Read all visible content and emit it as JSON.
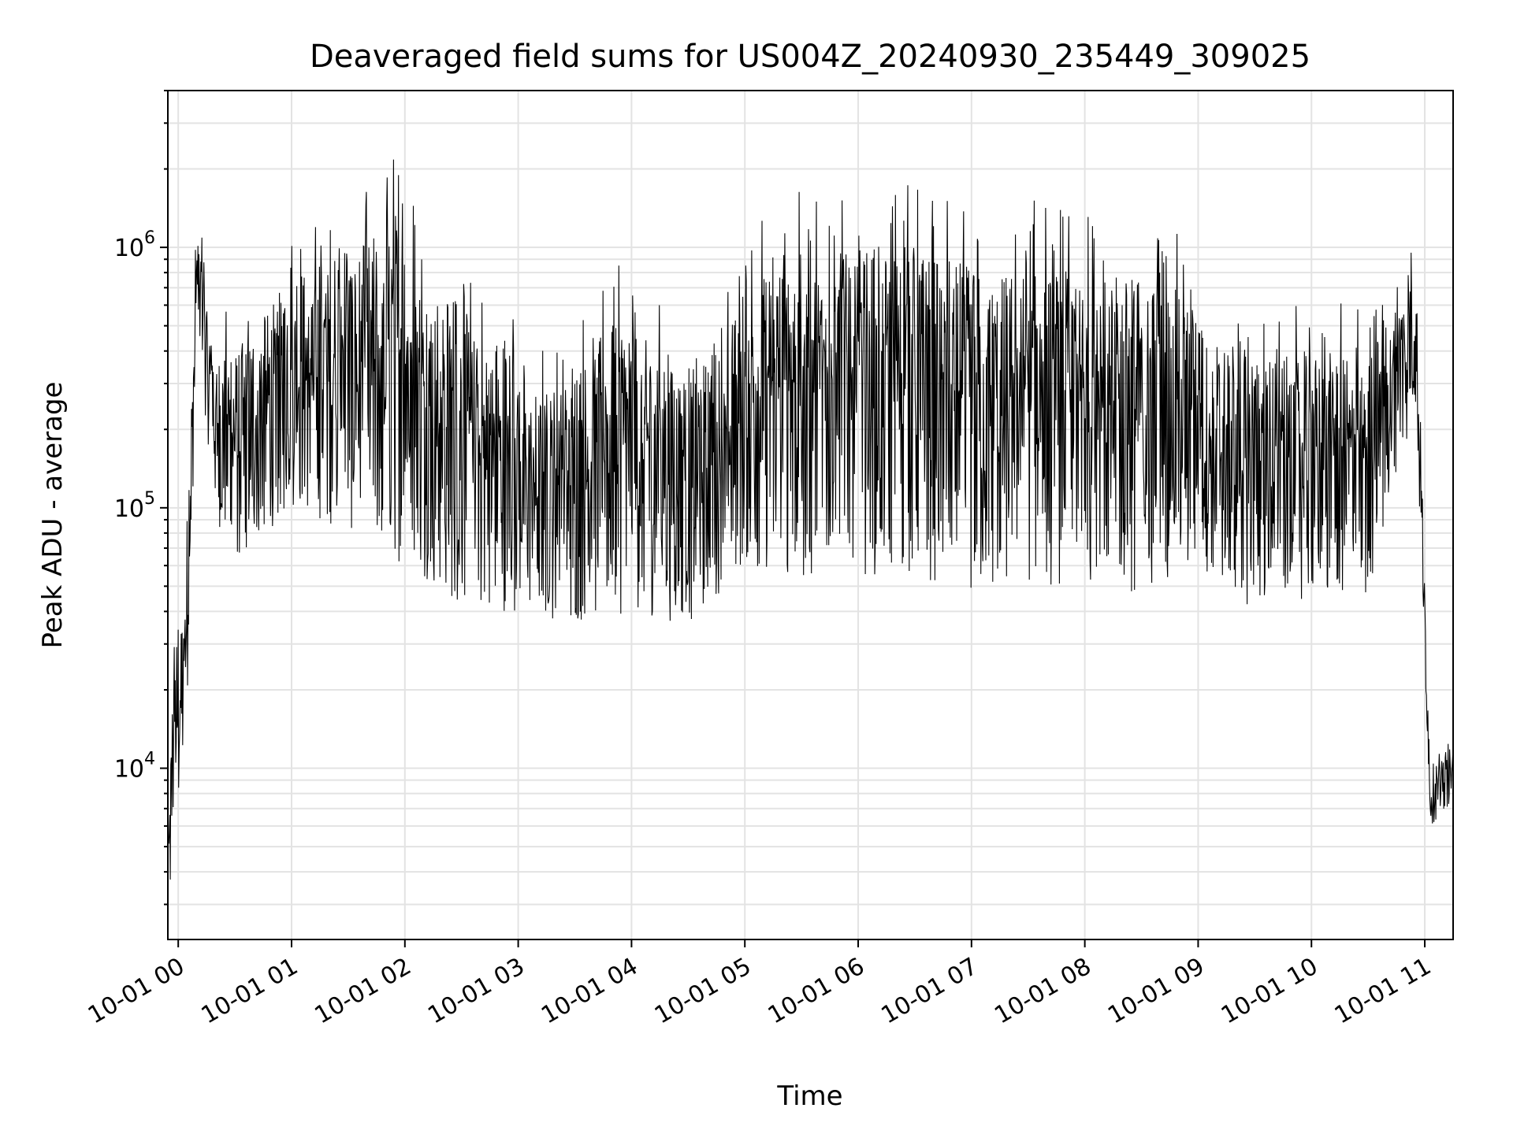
{
  "chart_data": {
    "type": "line",
    "title": "Deaveraged field sums for US004Z_20240930_235449_309025",
    "xlabel": "Time",
    "ylabel": "Peak ADU - average",
    "y_scale": "log",
    "ylim": [
      2200,
      4000000
    ],
    "xlim": [
      "2024-09-30T23:54:30",
      "2024-10-01T11:15:00"
    ],
    "x_ticks": [
      {
        "t": "2024-10-01T00:00:00",
        "label": "10-01 00"
      },
      {
        "t": "2024-10-01T01:00:00",
        "label": "10-01 01"
      },
      {
        "t": "2024-10-01T02:00:00",
        "label": "10-01 02"
      },
      {
        "t": "2024-10-01T03:00:00",
        "label": "10-01 03"
      },
      {
        "t": "2024-10-01T04:00:00",
        "label": "10-01 04"
      },
      {
        "t": "2024-10-01T05:00:00",
        "label": "10-01 05"
      },
      {
        "t": "2024-10-01T06:00:00",
        "label": "10-01 06"
      },
      {
        "t": "2024-10-01T07:00:00",
        "label": "10-01 07"
      },
      {
        "t": "2024-10-01T08:00:00",
        "label": "10-01 08"
      },
      {
        "t": "2024-10-01T09:00:00",
        "label": "10-01 09"
      },
      {
        "t": "2024-10-01T10:00:00",
        "label": "10-01 10"
      },
      {
        "t": "2024-10-01T11:00:00",
        "label": "10-01 11"
      }
    ],
    "y_ticks": [
      {
        "value": 10000,
        "base": "10",
        "exp": "4"
      },
      {
        "value": 100000,
        "base": "10",
        "exp": "5"
      },
      {
        "value": 1000000,
        "base": "10",
        "exp": "6"
      }
    ],
    "grid": "on (major and minor)",
    "series": [
      {
        "color": "#000000",
        "upper_envelope": [
          [
            "2024-09-30T23:55:00",
            9000
          ],
          [
            "2024-09-30T23:58:00",
            42000
          ],
          [
            "2024-10-01T00:03:00",
            65000
          ],
          [
            "2024-10-01T00:10:00",
            1550000
          ],
          [
            "2024-10-01T00:20:00",
            550000
          ],
          [
            "2024-10-01T00:40:00",
            700000
          ],
          [
            "2024-10-01T01:00:00",
            1250000
          ],
          [
            "2024-10-01T01:25:00",
            1400000
          ],
          [
            "2024-10-01T01:42:00",
            1950000
          ],
          [
            "2024-10-01T01:57:00",
            2900000
          ],
          [
            "2024-10-01T02:15:00",
            1100000
          ],
          [
            "2024-10-01T02:27:00",
            1350000
          ],
          [
            "2024-10-01T02:40:00",
            650000
          ],
          [
            "2024-10-01T02:55:00",
            900000
          ],
          [
            "2024-10-01T03:10:00",
            420000
          ],
          [
            "2024-10-01T03:30:00",
            550000
          ],
          [
            "2024-10-01T03:45:00",
            800000
          ],
          [
            "2024-10-01T04:00:00",
            900000
          ],
          [
            "2024-10-01T04:20:00",
            550000
          ],
          [
            "2024-10-01T04:50:00",
            700000
          ],
          [
            "2024-10-01T05:00:00",
            1300000
          ],
          [
            "2024-10-01T05:20:00",
            1800000
          ],
          [
            "2024-10-01T05:45:00",
            1700000
          ],
          [
            "2024-10-01T06:05:00",
            1850000
          ],
          [
            "2024-10-01T06:30:00",
            1800000
          ],
          [
            "2024-10-01T06:50:00",
            1700000
          ],
          [
            "2024-10-01T07:10:00",
            1400000
          ],
          [
            "2024-10-01T07:40:00",
            1600000
          ],
          [
            "2024-10-01T08:00:00",
            1400000
          ],
          [
            "2024-10-01T08:30:00",
            1400000
          ],
          [
            "2024-10-01T08:50:00",
            1200000
          ],
          [
            "2024-10-01T09:05:00",
            700000
          ],
          [
            "2024-10-01T09:30:00",
            650000
          ],
          [
            "2024-10-01T09:50:00",
            600000
          ],
          [
            "2024-10-01T10:10:00",
            620000
          ],
          [
            "2024-10-01T10:30:00",
            600000
          ],
          [
            "2024-10-01T10:55:00",
            1100000
          ],
          [
            "2024-10-01T11:03:00",
            10000
          ],
          [
            "2024-10-01T11:15:00",
            14000
          ]
        ],
        "lower_envelope": [
          [
            "2024-09-30T23:55:00",
            2200
          ],
          [
            "2024-09-30T23:58:00",
            6000
          ],
          [
            "2024-10-01T00:03:00",
            6000
          ],
          [
            "2024-10-01T00:10:00",
            450000
          ],
          [
            "2024-10-01T00:20:00",
            90000
          ],
          [
            "2024-10-01T00:30:00",
            60000
          ],
          [
            "2024-10-01T01:00:00",
            100000
          ],
          [
            "2024-10-01T01:30:00",
            80000
          ],
          [
            "2024-10-01T02:00:00",
            60000
          ],
          [
            "2024-10-01T02:30:00",
            40000
          ],
          [
            "2024-10-01T03:00:00",
            40000
          ],
          [
            "2024-10-01T03:30:00",
            35000
          ],
          [
            "2024-10-01T04:00:00",
            40000
          ],
          [
            "2024-10-01T04:30:00",
            35000
          ],
          [
            "2024-10-01T05:00:00",
            60000
          ],
          [
            "2024-10-01T05:30:00",
            50000
          ],
          [
            "2024-10-01T06:00:00",
            55000
          ],
          [
            "2024-10-01T06:30:00",
            55000
          ],
          [
            "2024-10-01T07:00:00",
            45000
          ],
          [
            "2024-10-01T07:30:00",
            50000
          ],
          [
            "2024-10-01T08:00:00",
            50000
          ],
          [
            "2024-10-01T08:30:00",
            45000
          ],
          [
            "2024-10-01T09:00:00",
            60000
          ],
          [
            "2024-10-01T09:30:00",
            40000
          ],
          [
            "2024-10-01T10:00:00",
            45000
          ],
          [
            "2024-10-01T10:30:00",
            40000
          ],
          [
            "2024-10-01T10:55:00",
            250000
          ],
          [
            "2024-10-01T11:03:00",
            6000
          ],
          [
            "2024-10-01T11:15:00",
            7500
          ]
        ]
      }
    ]
  }
}
